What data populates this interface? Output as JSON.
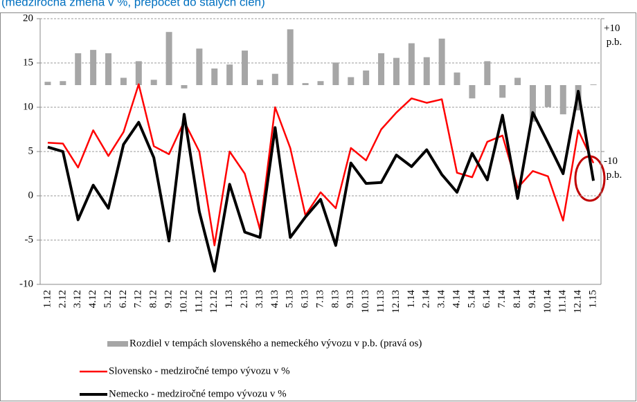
{
  "chart_data": {
    "type": "bar_line",
    "title": "(medziročná zmena v %, prepočet do stálych cien)",
    "categories": [
      "1.12",
      "2.12",
      "3.12",
      "4.12",
      "5.12",
      "6.12",
      "7.12",
      "8.12",
      "9.12",
      "10.12",
      "11.12",
      "12.12",
      "1.13",
      "2.13",
      "3.13",
      "4.13",
      "5.13",
      "6.13",
      "7.13",
      "8.13",
      "9.13",
      "10.13",
      "11.13",
      "12.13",
      "1.14",
      "2.14",
      "3.14",
      "4.14",
      "5.14",
      "6.14",
      "7.14",
      "8.14",
      "9.14",
      "10.14",
      "11.14",
      "12.14",
      "1.15"
    ],
    "series": [
      {
        "name": "Rozdiel v tempách slovenského a nemeckého vývozu v p.b. (pravá os)",
        "type": "bar",
        "axis": "y2",
        "color": "#a6a6a6",
        "values": [
          0.5,
          0.6,
          4.8,
          5.3,
          4.8,
          1.1,
          3.6,
          0.8,
          8.0,
          -0.5,
          5.5,
          2.5,
          3.1,
          5.2,
          0.8,
          1.7,
          8.4,
          0.3,
          0.6,
          3.4,
          1.2,
          2.2,
          4.8,
          4.1,
          6.3,
          4.2,
          7.0,
          1.9,
          -2.0,
          3.6,
          -1.9,
          1.1,
          -5.5,
          -3.3,
          -4.4,
          -3.8,
          0.1
        ]
      },
      {
        "name": "Slovensko - medziročné tempo vývozu v %",
        "type": "line",
        "color": "#ff0000",
        "values": [
          6.0,
          5.9,
          3.2,
          7.4,
          4.5,
          7.2,
          12.6,
          5.6,
          4.7,
          8.4,
          5.0,
          -5.6,
          5.0,
          2.5,
          -3.8,
          10.0,
          5.4,
          -2.2,
          0.4,
          -1.4,
          5.4,
          4.0,
          7.5,
          9.4,
          11.0,
          10.5,
          10.9,
          2.6,
          2.1,
          6.1,
          6.8,
          0.9,
          2.8,
          2.2,
          -2.8,
          7.4,
          3.7
        ]
      },
      {
        "name": "Nemecko - medziročné tempo vývozu v %",
        "type": "line",
        "color": "#000000",
        "values": [
          5.5,
          5.0,
          -2.7,
          1.2,
          -1.4,
          5.8,
          8.3,
          4.3,
          -5.1,
          9.2,
          -1.8,
          -8.5,
          1.3,
          -4.1,
          -4.7,
          7.7,
          -4.7,
          -2.4,
          -0.4,
          -5.6,
          3.7,
          1.4,
          1.5,
          4.6,
          3.3,
          5.2,
          2.4,
          0.4,
          4.8,
          1.8,
          9.1,
          -0.3,
          9.4,
          6.0,
          2.5,
          11.8,
          1.7
        ]
      }
    ],
    "ylim": [
      -10,
      20
    ],
    "yticks": [
      -10,
      -5,
      0,
      5,
      10,
      15,
      20
    ],
    "y2lim": [
      -30,
      10
    ],
    "y2ticks": [
      {
        "value": 10,
        "label": "+10 p.b."
      },
      {
        "value": -10,
        "label": "-10 p.b."
      }
    ],
    "grid": true
  }
}
